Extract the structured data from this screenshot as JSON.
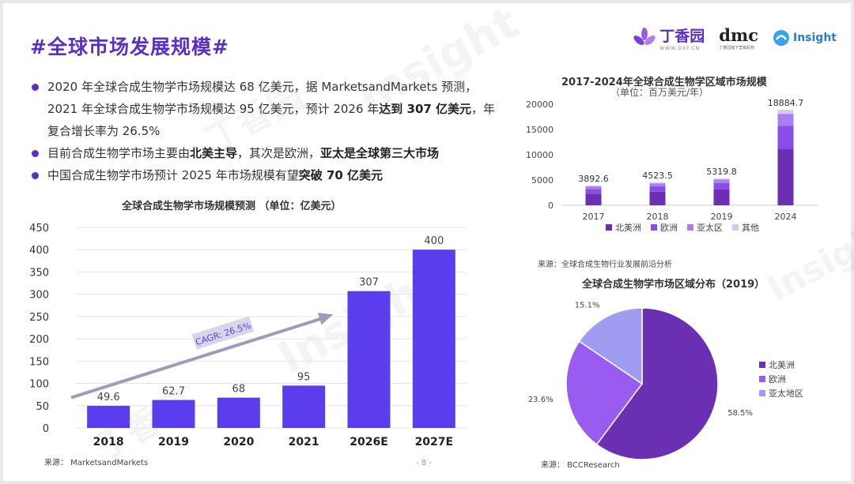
{
  "title": "#全球市场发展规模#",
  "logos": {
    "dxy_text": "丁香园",
    "dxy_sub": "WWW.DXY.CN",
    "dmc_text": "dmc",
    "dmc_sub": "丁香园旗下营销机构",
    "insight_text": "Insight"
  },
  "watermarks": [
    "Insight",
    "丁香园",
    "Insight",
    "丁香园",
    "Insight"
  ],
  "bullets": [
    {
      "parts": [
        {
          "t": "2020 年全球合成生物学市场规模达 68 亿美元，据 MarketsandMarkets 预测，2021 年全球合成生物学市场规模达 95 亿美元，预计 2026 年",
          "b": false
        },
        {
          "t": "达到 307 亿美元",
          "b": true
        },
        {
          "t": "，年复合增长率为 26.5%",
          "b": false
        }
      ]
    },
    {
      "parts": [
        {
          "t": "目前合成生物学市场主要由",
          "b": false
        },
        {
          "t": "北美主导",
          "b": true
        },
        {
          "t": "，其次是欧洲，",
          "b": false
        },
        {
          "t": "亚太是全球第三大市场",
          "b": true
        }
      ]
    },
    {
      "parts": [
        {
          "t": "中国合成生物学市场预计 2025 年市场规模有望",
          "b": false
        },
        {
          "t": "突破 70 亿美元",
          "b": true
        }
      ]
    }
  ],
  "left_chart": {
    "title": "全球合成生物学市场规模预测 （单位：亿美元）",
    "source": "来源：  MarketsandMarkets",
    "page": "- 8 -"
  },
  "top_right_chart": {
    "title": "2017-2024年全球合成生物学区域市场规模",
    "subtitle": "（单位：百万美元/年）",
    "source": "来源：全球合成生物行业发展前沿分析"
  },
  "pie_chart": {
    "title": "全球合成生物学市场区域分布（2019）",
    "source": "来源：  BCCResearch"
  },
  "chart_data": [
    {
      "type": "bar",
      "title": "全球合成生物学市场规模预测 （单位：亿美元）",
      "categories": [
        "2018",
        "2019",
        "2020",
        "2021",
        "2026E",
        "2027E"
      ],
      "values": [
        49.6,
        62.7,
        68,
        95,
        307,
        400
      ],
      "value_labels": [
        "49.6",
        "62.7",
        "68",
        "95",
        "307",
        "400"
      ],
      "ylim": [
        0,
        450
      ],
      "yticks": [
        0,
        50,
        100,
        150,
        200,
        250,
        300,
        350,
        400,
        450
      ],
      "color": "#5b3ded",
      "annotation": {
        "text": "CAGR: 26.5%",
        "arrow_from": [
          "2018",
          100
        ],
        "arrow_to": [
          "2026E",
          290
        ]
      },
      "grid": true,
      "legend": "none"
    },
    {
      "type": "bar",
      "stacked": true,
      "title": "2017-2024年全球合成生物学区域市场规模",
      "subtitle": "（单位：百万美元/年）",
      "categories": [
        "2017",
        "2018",
        "2019",
        "2024"
      ],
      "totals_labels": [
        "3892.6",
        "4523.5",
        "5319.8",
        "18884.7"
      ],
      "series": [
        {
          "name": "北美洲",
          "values": [
            2300,
            2700,
            3150,
            11200
          ],
          "color": "#6a2fb3"
        },
        {
          "name": "欧洲",
          "values": [
            920,
            1070,
            1260,
            4500
          ],
          "color": "#8a4de8"
        },
        {
          "name": "亚太区",
          "values": [
            520,
            560,
            700,
            2400
          ],
          "color": "#a77ff0"
        },
        {
          "name": "其他",
          "values": [
            152.6,
            193.5,
            209.8,
            784.7
          ],
          "color": "#d6c8f5"
        }
      ],
      "ylim": [
        0,
        20000
      ],
      "yticks": [
        0,
        5000,
        10000,
        15000,
        20000
      ],
      "legend": "bottom"
    },
    {
      "type": "pie",
      "title": "全球合成生物学市场区域分布（2019）",
      "slices": [
        {
          "name": "北美洲",
          "value": 58.5,
          "label": "58.5%",
          "color": "#6a2fb3"
        },
        {
          "name": "欧洲",
          "value": 23.6,
          "label": "23.6%",
          "color": "#9a5cf0"
        },
        {
          "name": "亚太地区",
          "value": 15.1,
          "label": "15.1%",
          "color": "#9f9cf2"
        }
      ],
      "legend": "right"
    }
  ]
}
